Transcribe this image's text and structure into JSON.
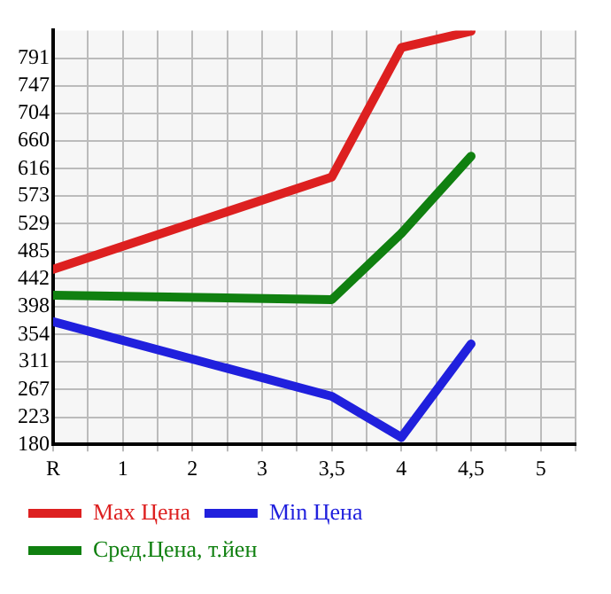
{
  "chart_data": {
    "type": "line",
    "categories": [
      "R",
      "1",
      "2",
      "3",
      "3,5",
      "4",
      "4,5",
      "5"
    ],
    "series": [
      {
        "name": "Max Цена",
        "color": "#dd2020",
        "values": [
          457,
          null,
          null,
          null,
          603,
          808,
          834,
          null
        ]
      },
      {
        "name": "Min Цена",
        "color": "#2020dd",
        "values": [
          374,
          null,
          null,
          null,
          256,
          191,
          339,
          null
        ]
      },
      {
        "name": "Сред.Цена, т.йен",
        "color": "#108010",
        "values": [
          416,
          null,
          null,
          null,
          409,
          514,
          636,
          null
        ]
      }
    ],
    "ylim": [
      180,
      835
    ],
    "yticks": [
      180,
      223,
      267,
      311,
      354,
      398,
      442,
      485,
      529,
      573,
      616,
      660,
      704,
      747,
      791
    ],
    "grid": true,
    "legend": "bottom",
    "marker": "none",
    "line_style": "solid"
  }
}
